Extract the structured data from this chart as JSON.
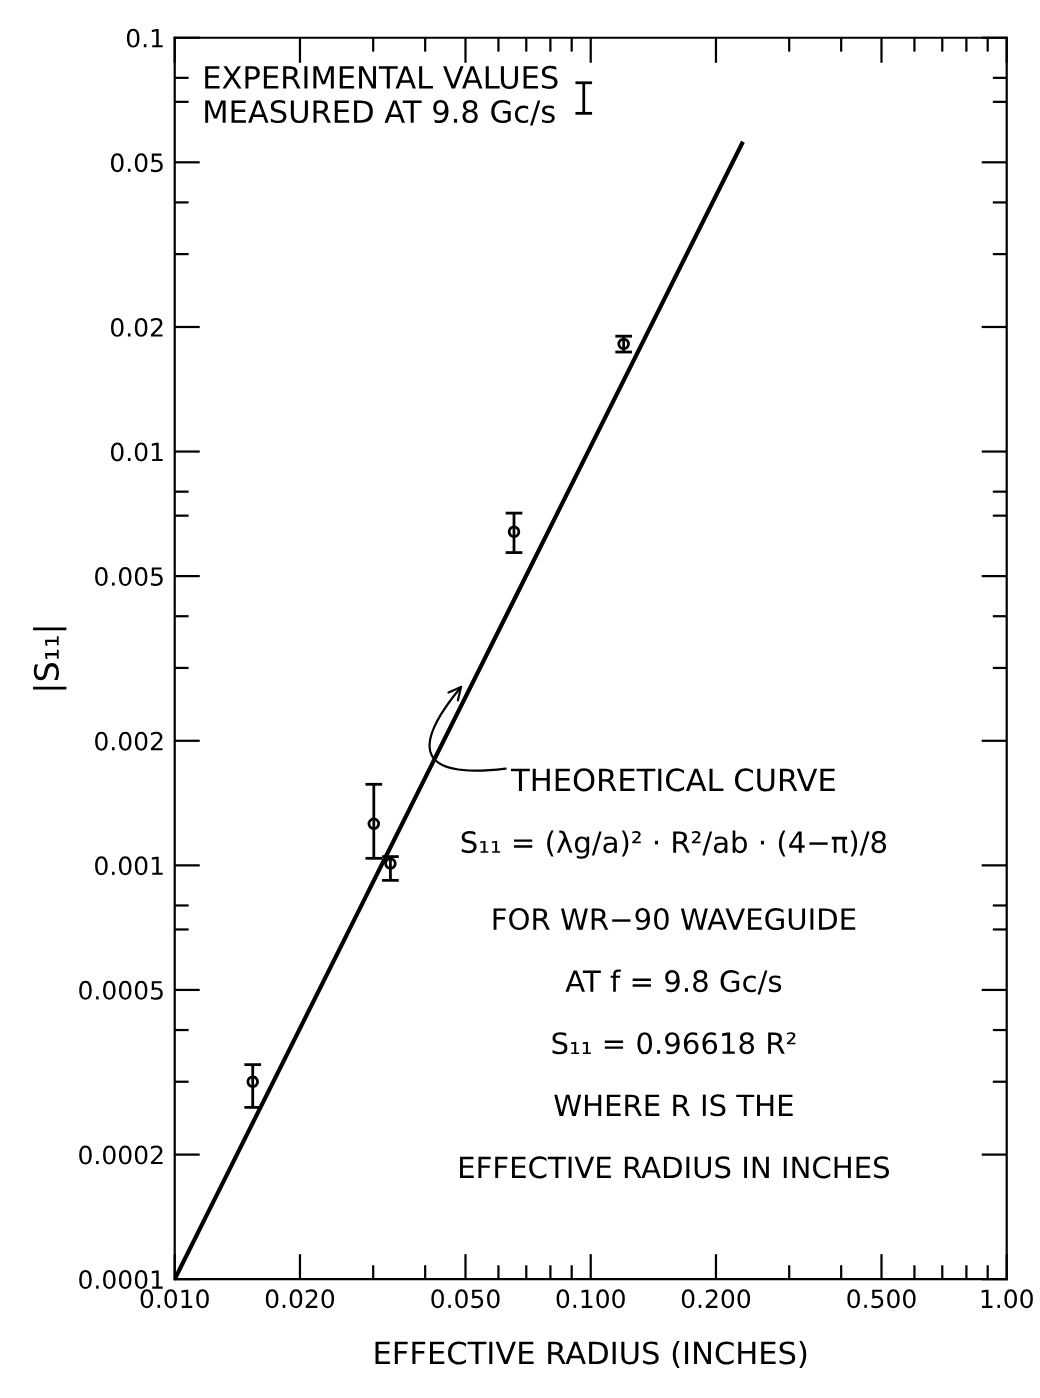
{
  "chart_data": {
    "type": "scatter",
    "xlabel": "EFFECTIVE RADIUS (INCHES)",
    "ylabel": "|S₁₁|",
    "log": "xy",
    "xlim": [
      0.01,
      1.0
    ],
    "ylim": [
      0.0001,
      0.1
    ],
    "xticks": [
      {
        "value": 0.01,
        "label": "0.010"
      },
      {
        "value": 0.02,
        "label": "0.020"
      },
      {
        "value": 0.03,
        "label": null
      },
      {
        "value": 0.04,
        "label": null
      },
      {
        "value": 0.05,
        "label": "0.050"
      },
      {
        "value": 0.06,
        "label": null
      },
      {
        "value": 0.07,
        "label": null
      },
      {
        "value": 0.08,
        "label": null
      },
      {
        "value": 0.09,
        "label": null
      },
      {
        "value": 0.1,
        "label": "0.100"
      },
      {
        "value": 0.2,
        "label": "0.200"
      },
      {
        "value": 0.3,
        "label": null
      },
      {
        "value": 0.4,
        "label": null
      },
      {
        "value": 0.5,
        "label": "0.500"
      },
      {
        "value": 0.6,
        "label": null
      },
      {
        "value": 0.7,
        "label": null
      },
      {
        "value": 0.8,
        "label": null
      },
      {
        "value": 0.9,
        "label": null
      },
      {
        "value": 1.0,
        "label": "1.00"
      }
    ],
    "yticks": [
      0.0001,
      0.0002,
      {
        "value": 0.0003,
        "label": null
      },
      {
        "value": 0.0004,
        "label": null
      },
      0.0005,
      {
        "value": 0.0007,
        "label": null
      },
      {
        "value": 0.0008,
        "label": null
      },
      0.001,
      0.002,
      {
        "value": 0.003,
        "label": null
      },
      {
        "value": 0.004,
        "label": null
      },
      0.005,
      {
        "value": 0.007,
        "label": null
      },
      {
        "value": 0.008,
        "label": null
      },
      0.01,
      0.02,
      {
        "value": 0.03,
        "label": null
      },
      {
        "value": 0.04,
        "label": null
      },
      0.05,
      {
        "value": 0.07,
        "label": null
      },
      {
        "value": 0.08,
        "label": null
      },
      0.1
    ],
    "grid": false,
    "legend": "top left",
    "marker": "circle",
    "series": [
      {
        "name": "EXPERIMENTAL VALUES\nMEASURED AT 9.8 Gc/s",
        "color": "#000000",
        "x": [
          0.0154,
          0.0301,
          0.033,
          0.0654,
          0.12
        ],
        "values": [
          0.0003,
          0.00126,
          0.00101,
          0.0064,
          0.0182
        ],
        "errors": [
          [
            0.00026,
            0.00033
          ],
          [
            0.00104,
            0.00157
          ],
          [
            0.00092,
            0.00105
          ],
          [
            0.0057,
            0.0071
          ],
          [
            0.0174,
            0.019
          ]
        ]
      },
      {
        "type": "line",
        "color": "#000000",
        "marker": "none",
        "line_style": "solid",
        "x": [
          0.01,
          0.231
        ],
        "values": [
          0.0001,
          0.0555
        ]
      }
    ],
    "annotations": [
      {
        "text": "THEORETICAL CURVE",
        "x": 0.0497,
        "y": 0.00276
      },
      "S₁₁ = (λg/a)² · R²/ab · (4−π)/8",
      "FOR WR−90 WAVEGUIDE",
      "AT f = 9.8 Gc/s",
      "S₁₁ = 0.96618 R²",
      "WHERE R IS THE",
      "EFFECTIVE RADIUS IN INCHES"
    ]
  }
}
